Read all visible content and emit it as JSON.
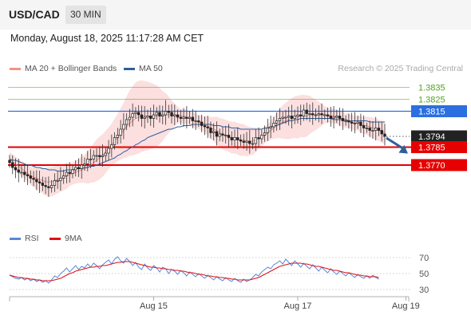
{
  "header": {
    "symbol": "USD/CAD",
    "timeframe": "30 MIN"
  },
  "datetime": "Monday, August 18, 2025 11:17:28 AM CET",
  "legend": {
    "ma20": {
      "label": "MA 20 + Bollinger Bands",
      "color": "#f2918a"
    },
    "ma50": {
      "label": "MA 50",
      "color": "#2d5f9e"
    },
    "copyright": "Research © 2025 Trading Central"
  },
  "rsi_legend": {
    "rsi": {
      "label": "RSI",
      "color": "#5b86d9"
    },
    "ma": {
      "label": "9MA",
      "color": "#e01010"
    }
  },
  "chart_data": [
    {
      "type": "candlestick",
      "title": "USD/CAD",
      "timeframe": "30 MIN",
      "ylim": [
        1.3718,
        1.3848
      ],
      "current_price": 1.3794,
      "levels": [
        {
          "value": 1.3835,
          "label": "1.3835",
          "color": "#4fa31c",
          "kind": "resistance"
        },
        {
          "value": 1.3825,
          "label": "1.3825",
          "color": "#4fa31c",
          "kind": "resistance"
        },
        {
          "value": 1.3815,
          "label": "1.3815",
          "color": "#2b6fe0",
          "kind": "pivot"
        },
        {
          "value": 1.3794,
          "label": "1.3794",
          "color": "#222222",
          "kind": "last"
        },
        {
          "value": 1.3785,
          "label": "1.3785",
          "color": "#e60000",
          "kind": "support"
        },
        {
          "value": 1.377,
          "label": "1.3770",
          "color": "#e60000",
          "kind": "support"
        }
      ],
      "x_ticks": [
        {
          "label": "Aug 15",
          "index": 48
        },
        {
          "label": "Aug 17",
          "index": 96
        },
        {
          "label": "Aug 19",
          "index": 132
        }
      ],
      "closes": [
        1.3772,
        1.3768,
        1.3766,
        1.3764,
        1.3764,
        1.3762,
        1.3761,
        1.3759,
        1.3758,
        1.3756,
        1.3755,
        1.3753,
        1.3752,
        1.3751,
        1.3753,
        1.3757,
        1.3757,
        1.3759,
        1.3761,
        1.3764,
        1.3763,
        1.3766,
        1.3768,
        1.3767,
        1.377,
        1.3771,
        1.3775,
        1.3775,
        1.3778,
        1.3778,
        1.3777,
        1.3778,
        1.378,
        1.3784,
        1.3787,
        1.3793,
        1.3795,
        1.38,
        1.3804,
        1.3808,
        1.381,
        1.3813,
        1.3814,
        1.3812,
        1.3809,
        1.381,
        1.3811,
        1.3809,
        1.3812,
        1.3814,
        1.3811,
        1.3812,
        1.3815,
        1.3814,
        1.3811,
        1.3812,
        1.381,
        1.3809,
        1.381,
        1.3809,
        1.381,
        1.3807,
        1.3807,
        1.3806,
        1.3803,
        1.3802,
        1.3801,
        1.3797,
        1.3798,
        1.3794,
        1.3796,
        1.3795,
        1.3795,
        1.3793,
        1.3791,
        1.3793,
        1.3791,
        1.379,
        1.3789,
        1.379,
        1.3788,
        1.3788,
        1.3793,
        1.3792,
        1.3795,
        1.3797,
        1.3801,
        1.3802,
        1.3805,
        1.3807,
        1.3809,
        1.381,
        1.381,
        1.3811,
        1.3809,
        1.3811,
        1.3812,
        1.3811,
        1.3816,
        1.3813,
        1.3813,
        1.3812,
        1.3812,
        1.3813,
        1.3812,
        1.3812,
        1.3811,
        1.3809,
        1.381,
        1.3811,
        1.3809,
        1.3807,
        1.3807,
        1.3806,
        1.3805,
        1.3805,
        1.3806,
        1.3803,
        1.3801,
        1.3801,
        1.3799,
        1.3799,
        1.3801,
        1.3799,
        1.3796,
        1.3794
      ],
      "ma20": [
        1.3775,
        1.3773,
        1.3771,
        1.3769,
        1.3767,
        1.3765,
        1.3763,
        1.3761,
        1.376,
        1.3759,
        1.3758,
        1.3757,
        1.3756,
        1.3756,
        1.3756,
        1.3757,
        1.3758,
        1.3759,
        1.376,
        1.3761,
        1.3762,
        1.3763,
        1.3764,
        1.3765,
        1.3766,
        1.3767,
        1.3768,
        1.377,
        1.3772,
        1.3774,
        1.3776,
        1.3778,
        1.3781,
        1.3784,
        1.3787,
        1.379,
        1.3793,
        1.3796,
        1.3799,
        1.3802,
        1.3805,
        1.3807,
        1.3809,
        1.381,
        1.3811,
        1.3811,
        1.3811,
        1.3811,
        1.3811,
        1.3811,
        1.3811,
        1.3811,
        1.3812,
        1.3812,
        1.3812,
        1.3812,
        1.3812,
        1.3811,
        1.3811,
        1.381,
        1.3809,
        1.3808,
        1.3807,
        1.3806,
        1.3805,
        1.3804,
        1.3803,
        1.3801,
        1.38,
        1.3799,
        1.3797,
        1.3796,
        1.3795,
        1.3794,
        1.3793,
        1.3793,
        1.3792,
        1.3791,
        1.3791,
        1.379,
        1.379,
        1.379,
        1.3791,
        1.3792,
        1.3793,
        1.3795,
        1.3797,
        1.3799,
        1.3801,
        1.3803,
        1.3805,
        1.3806,
        1.3807,
        1.3808,
        1.3809,
        1.381,
        1.381,
        1.3811,
        1.3811,
        1.3811,
        1.3812,
        1.3812,
        1.3812,
        1.3812,
        1.3812,
        1.3812,
        1.3812,
        1.3811,
        1.3811,
        1.381,
        1.3809,
        1.3808,
        1.3807,
        1.3807,
        1.3806,
        1.3805,
        1.3805,
        1.3804,
        1.3803,
        1.3803,
        1.3802,
        1.3801,
        1.38,
        1.3799,
        1.3798,
        1.3797
      ],
      "ma50": [
        1.3775,
        1.3774,
        1.3774,
        1.3773,
        1.3772,
        1.3771,
        1.377,
        1.377,
        1.3769,
        1.3768,
        1.3768,
        1.3767,
        1.3767,
        1.3766,
        1.3766,
        1.3766,
        1.3765,
        1.3765,
        1.3765,
        1.3766,
        1.3766,
        1.3766,
        1.3767,
        1.3767,
        1.3767,
        1.3768,
        1.3768,
        1.3769,
        1.3769,
        1.377,
        1.3771,
        1.3772,
        1.3773,
        1.3774,
        1.3775,
        1.3776,
        1.3778,
        1.3779,
        1.3781,
        1.3782,
        1.3784,
        1.3785,
        1.3787,
        1.3788,
        1.379,
        1.3791,
        1.3793,
        1.3794,
        1.3795,
        1.3796,
        1.3797,
        1.3798,
        1.3799,
        1.38,
        1.38,
        1.3801,
        1.3802,
        1.3802,
        1.3803,
        1.3803,
        1.3803,
        1.3804,
        1.3804,
        1.3804,
        1.3804,
        1.3804,
        1.3804,
        1.3804,
        1.3803,
        1.3803,
        1.3803,
        1.3802,
        1.3802,
        1.3802,
        1.3801,
        1.3801,
        1.3801,
        1.38,
        1.38,
        1.38,
        1.38,
        1.38,
        1.38,
        1.38,
        1.38,
        1.3801,
        1.3801,
        1.3802,
        1.3803,
        1.3803,
        1.3804,
        1.3805,
        1.3806,
        1.3807,
        1.3807,
        1.3808,
        1.3808,
        1.3809,
        1.3809,
        1.3809,
        1.3809,
        1.3809,
        1.3809,
        1.3809,
        1.3809,
        1.3809,
        1.3809,
        1.3809,
        1.3808,
        1.3808,
        1.3808,
        1.3808,
        1.3808,
        1.3807,
        1.3807,
        1.3807,
        1.3807,
        1.3807,
        1.3807,
        1.3807,
        1.3806,
        1.3806,
        1.3806,
        1.3806,
        1.3806,
        1.3806
      ]
    },
    {
      "type": "line",
      "title": "RSI",
      "ylim": [
        25,
        80
      ],
      "y_ticks": [
        70,
        50,
        30
      ],
      "series": [
        {
          "name": "RSI",
          "color": "#5b86d9",
          "values": [
            48,
            46,
            44,
            43,
            45,
            42,
            44,
            41,
            43,
            40,
            42,
            39,
            41,
            38,
            42,
            47,
            45,
            50,
            53,
            57,
            52,
            56,
            60,
            55,
            59,
            57,
            62,
            58,
            63,
            60,
            56,
            61,
            64,
            67,
            62,
            68,
            71,
            66,
            63,
            69,
            65,
            60,
            64,
            58,
            55,
            62,
            57,
            54,
            60,
            57,
            52,
            58,
            56,
            50,
            55,
            53,
            49,
            54,
            51,
            47,
            52,
            49,
            46,
            50,
            47,
            44,
            48,
            45,
            42,
            46,
            43,
            41,
            45,
            42,
            40,
            44,
            41,
            39,
            43,
            40,
            42,
            45,
            49,
            47,
            52,
            55,
            58,
            56,
            61,
            63,
            66,
            62,
            68,
            64,
            60,
            66,
            62,
            58,
            63,
            59,
            56,
            61,
            57,
            53,
            58,
            54,
            51,
            56,
            52,
            49,
            53,
            50,
            47,
            51,
            48,
            45,
            49,
            46,
            44,
            47,
            44,
            48,
            45,
            43
          ]
        },
        {
          "name": "9MA",
          "color": "#e01010",
          "values": [
            48,
            47,
            46,
            45,
            45,
            44,
            44,
            43,
            43,
            42,
            42,
            41,
            41,
            41,
            41,
            42,
            43,
            44,
            46,
            48,
            50,
            51,
            53,
            54,
            55,
            56,
            57,
            58,
            58,
            59,
            59,
            60,
            60,
            61,
            62,
            63,
            64,
            64,
            65,
            65,
            65,
            64,
            63,
            62,
            61,
            60,
            59,
            58,
            58,
            57,
            57,
            56,
            56,
            55,
            55,
            54,
            54,
            53,
            53,
            52,
            51,
            51,
            50,
            49,
            49,
            48,
            47,
            47,
            46,
            46,
            45,
            45,
            44,
            44,
            43,
            43,
            42,
            42,
            42,
            42,
            42,
            43,
            44,
            45,
            47,
            49,
            51,
            53,
            55,
            57,
            59,
            60,
            61,
            62,
            63,
            63,
            63,
            63,
            62,
            62,
            61,
            60,
            59,
            59,
            58,
            57,
            56,
            55,
            54,
            54,
            53,
            52,
            51,
            51,
            50,
            49,
            48,
            48,
            47,
            47,
            46,
            46,
            46,
            45
          ]
        }
      ]
    }
  ],
  "forecast_arrow": {
    "from_price": 1.3794,
    "to_price": 1.3785,
    "direction": "down",
    "color": "#2d5f9e"
  }
}
